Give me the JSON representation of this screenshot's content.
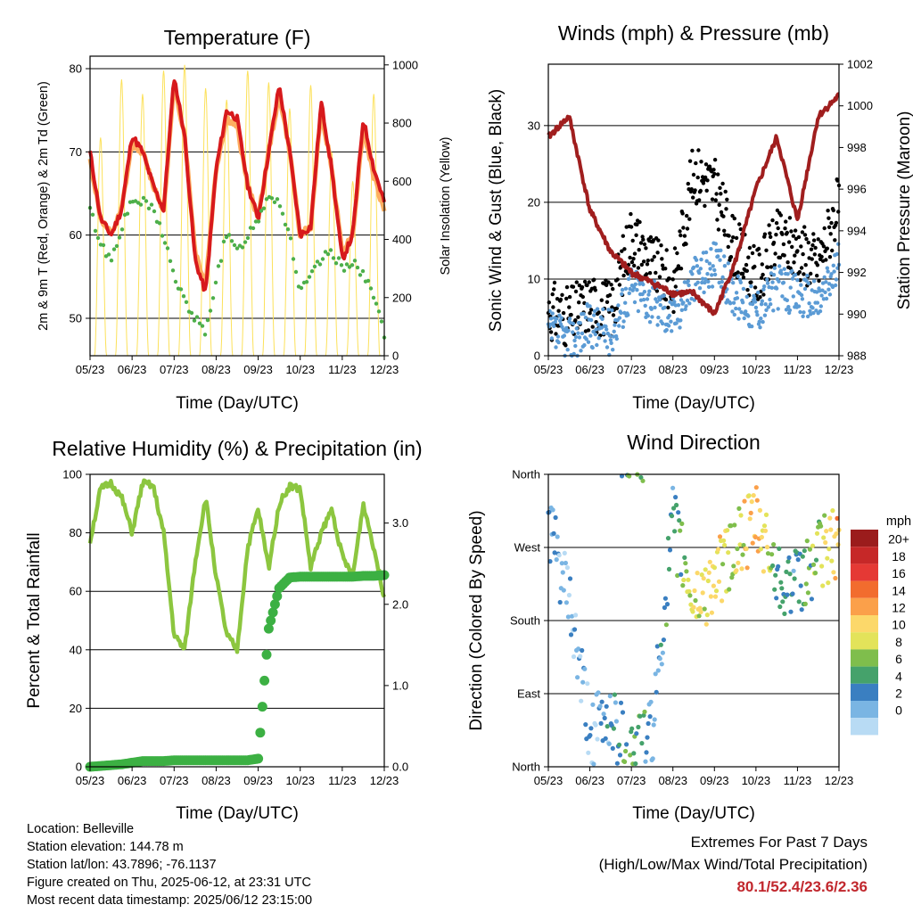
{
  "x_ticks": [
    "05/23",
    "06/23",
    "07/23",
    "08/23",
    "09/23",
    "10/23",
    "11/23",
    "12/23"
  ],
  "footer": {
    "location": "Location: Belleville",
    "elevation": "Station elevation: 144.78 m",
    "latlon": "Station lat/lon: 43.7896; -76.1137",
    "created": "Figure created on Thu, 2025-06-12, at 23:31 UTC",
    "recent": "Most recent data timestamp: 2025/06/12 23:15:00"
  },
  "extremes": {
    "heading": "Extremes For Past 7 Days",
    "subheading": "(High/Low/Max Wind/Total Precipitation)",
    "values": "80.1/52.4/23.6/2.36",
    "color": "#c1272d"
  },
  "colors": {
    "temp_2m": "#d7191c",
    "temp_9m": "#fdae61",
    "dewpoint": "#4daf4a",
    "solar": "#fce15a",
    "wind_sonic": "#5b9bd5",
    "gust": "#000000",
    "pressure": "#a01e1e",
    "rh": "#8cc63f",
    "precip": "#3cb043"
  },
  "chart_data": [
    {
      "type": "line",
      "title": "Temperature (F)",
      "xlabel": "Time (Day/UTC)",
      "ylabel": "2m & 9m T (Red, Orange) & 2m Td (Green)",
      "ylabel_right": "Solar Insolation (Yellow)",
      "ylim": [
        45.5,
        81.5
      ],
      "ylim_right": [
        0,
        1030
      ],
      "yticks": [
        "50",
        "60",
        "70",
        "80"
      ],
      "yticks_right": [
        "0",
        "200",
        "400",
        "600",
        "800",
        "1000"
      ],
      "grid": true,
      "x": [
        0,
        0.25,
        0.5,
        0.75,
        1,
        1.25,
        1.5,
        1.75,
        2,
        2.25,
        2.5,
        2.75,
        3,
        3.25,
        3.5,
        3.75,
        4,
        4.25,
        4.5,
        4.75,
        5,
        5.25,
        5.5,
        5.75,
        6,
        6.25,
        6.5,
        6.75,
        7
      ],
      "series": [
        {
          "name": "2m T",
          "values": [
            70,
            62,
            60,
            63,
            72,
            70,
            66,
            63,
            79,
            72,
            57,
            53,
            68,
            75,
            74,
            66,
            62,
            70,
            78,
            70,
            60,
            61,
            76,
            68,
            57,
            60,
            74,
            68,
            64
          ]
        },
        {
          "name": "9m T",
          "values": [
            69,
            62,
            60,
            63,
            71,
            70,
            66,
            63,
            78,
            72,
            58,
            54,
            68,
            74,
            73,
            66,
            62,
            70,
            77,
            70,
            60,
            61,
            75,
            68,
            58,
            60,
            73,
            67,
            63
          ]
        },
        {
          "name": "2m Td",
          "values": [
            63,
            59,
            57,
            61,
            64,
            64,
            63,
            60,
            55,
            52,
            50,
            48,
            55,
            60,
            58,
            60,
            62,
            65,
            64,
            60,
            53,
            55,
            57,
            58,
            56,
            57,
            55,
            53,
            48
          ]
        }
      ],
      "solar": {
        "name": "Solar Insolation",
        "peaks": [
          750,
          950,
          900,
          980,
          1000,
          920,
          880,
          980,
          940,
          850,
          930,
          700,
          600,
          900
        ]
      }
    },
    {
      "type": "scatter",
      "title": "Winds (mph) & Pressure (mb)",
      "xlabel": "Time (Day/UTC)",
      "ylabel": "Sonic Wind & Gust (Blue, Black)",
      "ylabel_right": "Station Pressure (Maroon)",
      "ylim": [
        0,
        38
      ],
      "ylim_right": [
        988,
        1002
      ],
      "yticks": [
        "0",
        "10",
        "20",
        "30"
      ],
      "yticks_right": [
        "988",
        "990",
        "992",
        "994",
        "996",
        "998",
        "1000",
        "1002"
      ],
      "grid": true,
      "x": [
        0,
        0.5,
        1,
        1.5,
        2,
        2.5,
        3,
        3.5,
        4,
        4.5,
        5,
        5.5,
        6,
        6.5,
        7
      ],
      "series": [
        {
          "name": "Sonic Wind",
          "values": [
            3,
            2,
            4,
            3,
            9,
            7,
            5,
            10,
            12,
            8,
            6,
            9,
            8,
            7,
            12
          ]
        },
        {
          "name": "Gust",
          "values": [
            6,
            5,
            7,
            6,
            16,
            12,
            9,
            24,
            22,
            14,
            10,
            15,
            14,
            12,
            20
          ]
        },
        {
          "name": "Station Pressure",
          "values": [
            998.5,
            999.5,
            995,
            993,
            992,
            991.5,
            991,
            991,
            990,
            992.5,
            996,
            998.5,
            994.5,
            999.5,
            1000.5
          ]
        }
      ]
    },
    {
      "type": "line",
      "title": "Relative Humidity (%) & Precipitation (in)",
      "xlabel": "Time (Day/UTC)",
      "ylabel": "Percent & Total Rainfall",
      "ylim": [
        0,
        100
      ],
      "ylim_right": [
        0,
        3.6
      ],
      "yticks": [
        "0",
        "20",
        "40",
        "60",
        "80",
        "100"
      ],
      "yticks_right": [
        "0.0",
        "1.0",
        "2.0",
        "3.0"
      ],
      "grid": true,
      "x": [
        0,
        0.25,
        0.5,
        0.75,
        1,
        1.25,
        1.5,
        1.75,
        2,
        2.25,
        2.5,
        2.75,
        3,
        3.25,
        3.5,
        3.75,
        4,
        4.25,
        4.5,
        4.75,
        5,
        5.25,
        5.5,
        5.75,
        6,
        6.25,
        6.5,
        6.75,
        7
      ],
      "series": [
        {
          "name": "Relative Humidity",
          "values": [
            77,
            95,
            97,
            92,
            80,
            97,
            96,
            80,
            45,
            40,
            70,
            92,
            65,
            45,
            40,
            75,
            88,
            68,
            90,
            96,
            95,
            68,
            80,
            88,
            72,
            65,
            90,
            75,
            58
          ]
        },
        {
          "name": "Total Precipitation",
          "values": [
            0.0,
            0.01,
            0.02,
            0.03,
            0.05,
            0.07,
            0.07,
            0.07,
            0.08,
            0.08,
            0.08,
            0.08,
            0.08,
            0.08,
            0.08,
            0.08,
            0.1,
            1.7,
            2.2,
            2.33,
            2.34,
            2.34,
            2.34,
            2.34,
            2.34,
            2.34,
            2.35,
            2.35,
            2.36
          ]
        }
      ]
    },
    {
      "type": "scatter",
      "title": "Wind Direction",
      "xlabel": "Time (Day/UTC)",
      "ylabel": "Direction (Colored By Speed)",
      "ylim": [
        0,
        360
      ],
      "yticks": [
        "North",
        "East",
        "South",
        "West",
        "North"
      ],
      "grid": true,
      "colorbar": {
        "title": "mph",
        "labels": [
          "20+",
          "18",
          "16",
          "14",
          "12",
          "10",
          "8",
          "6",
          "4",
          "2",
          "0"
        ],
        "colors": [
          "#9b1c1c",
          "#c62828",
          "#e53935",
          "#f26c2e",
          "#fba04a",
          "#fcd86a",
          "#e3e35a",
          "#7fbe4c",
          "#45a26b",
          "#3a7fc1",
          "#7ab5e3",
          "#b8dbf4"
        ]
      },
      "x": [
        0,
        0.5,
        1,
        1.5,
        2,
        2.5,
        3,
        3.5,
        4,
        4.5,
        5,
        5.5,
        6,
        6.5,
        7
      ],
      "values": [
        300,
        200,
        40,
        60,
        20,
        40,
        300,
        200,
        230,
        270,
        300,
        240,
        220,
        260,
        280
      ],
      "speeds": [
        3,
        2,
        2,
        3,
        7,
        4,
        5,
        10,
        12,
        9,
        14,
        6,
        5,
        8,
        14
      ]
    }
  ]
}
